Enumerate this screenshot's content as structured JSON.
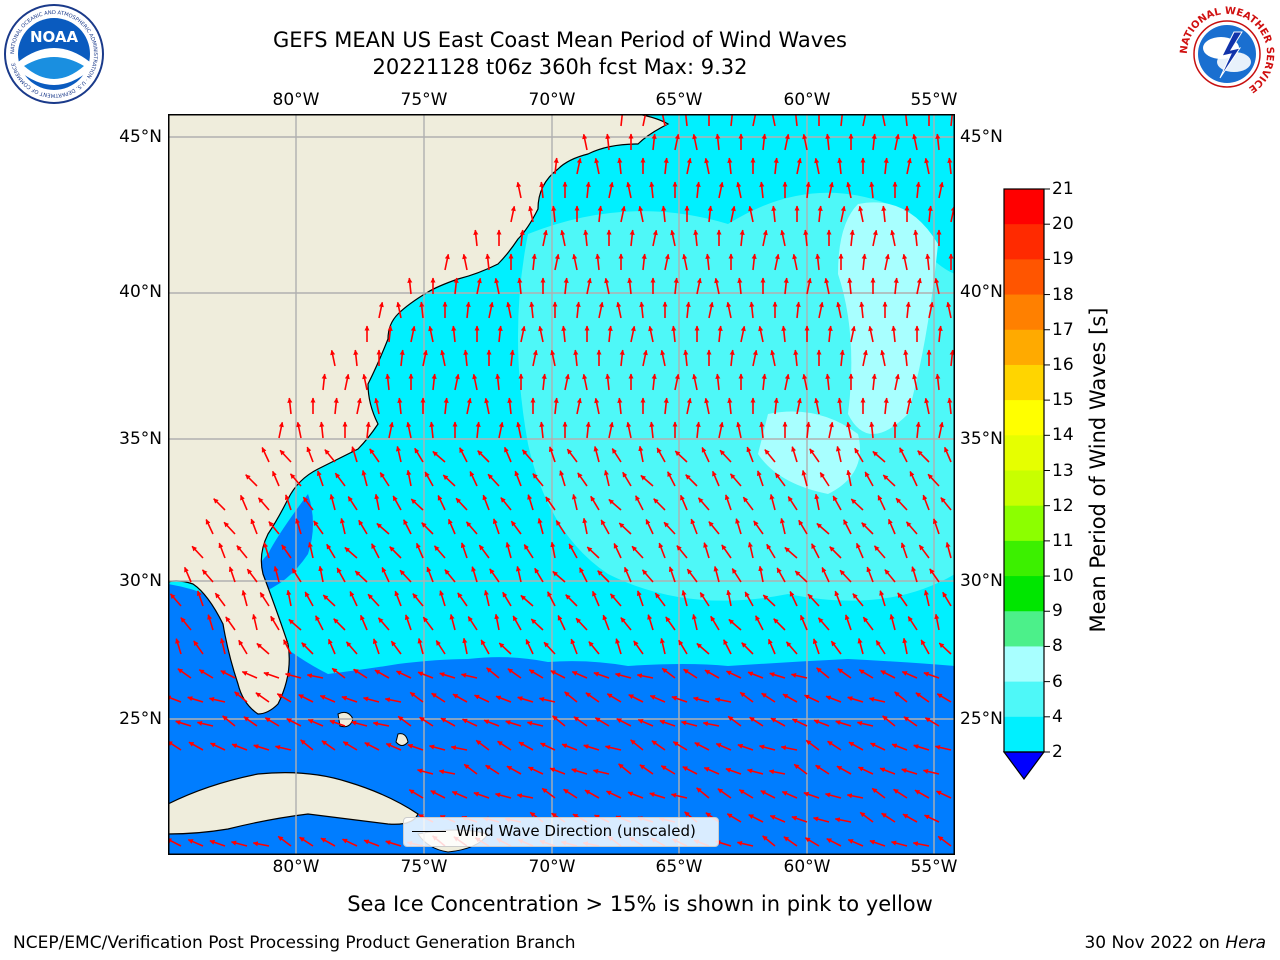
{
  "title_line1": "GEFS MEAN US East Coast Mean Period of Wind Waves",
  "title_line2": "20221128 t06z 360h fcst   Max: 9.32",
  "lon_labels": [
    "80°W",
    "75°W",
    "70°W",
    "65°W",
    "60°W",
    "55°W"
  ],
  "lat_labels": [
    "45°N",
    "40°N",
    "35°N",
    "30°N",
    "25°N"
  ],
  "colorbar": {
    "label": "Mean Period of Wind Waves [s]",
    "ticks": [
      "21",
      "20",
      "19",
      "18",
      "17",
      "16",
      "15",
      "14",
      "13",
      "12",
      "11",
      "10",
      "9",
      "8",
      "6",
      "4",
      "2"
    ],
    "colors": [
      "#ff0000",
      "#ff2a00",
      "#ff5500",
      "#ff8000",
      "#ffaa00",
      "#ffd500",
      "#ffff00",
      "#e6ff00",
      "#c8ff00",
      "#8cff00",
      "#3cf000",
      "#00e600",
      "#4cf08a",
      "#a8ffff",
      "#4ef8f8",
      "#00f0ff",
      "#007dff"
    ],
    "under_color": "#0000ff"
  },
  "legend_label": "Wind Wave Direction (unscaled)",
  "ice_note": "Sea Ice Concentration > 15% is shown in pink to yellow",
  "footer_left": "NCEP/EMC/Verification Post Processing Product Generation Branch",
  "footer_right_date": "30 Nov 2022 on",
  "footer_right_machine": "Hera",
  "logos": {
    "noaa_text": "NOAA",
    "noaa_ring": "NATIONAL OCEANIC AND ATMOSPHERIC ADMINISTRATION · U.S. DEPARTMENT OF COMMERCE",
    "nws_ring": "NATIONAL WEATHER SERVICE"
  },
  "colors": {
    "land": "#efeddc",
    "ocean_main": "#00f0ff",
    "ocean_light": "#4ef8f8",
    "ocean_pale": "#a8ffff",
    "ocean_blue": "#007dff",
    "arrows": "#ff0000",
    "grid": "#b0b0b0"
  }
}
